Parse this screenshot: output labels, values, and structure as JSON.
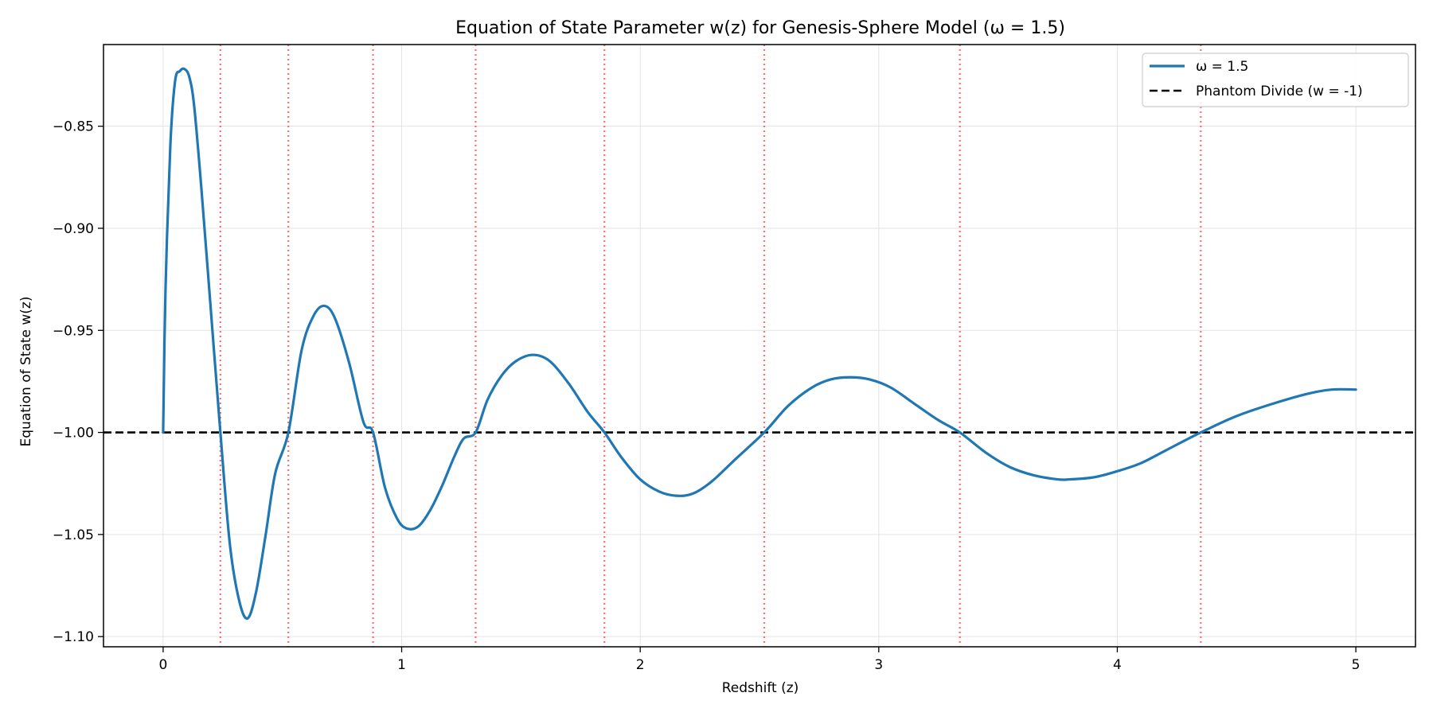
{
  "chart_data": {
    "type": "line",
    "title": "Equation of State Parameter w(z) for Genesis-Sphere Model (ω = 1.5)",
    "xlabel": "Redshift (z)",
    "ylabel": "Equation of State w(z)",
    "xlim": [
      -0.25,
      5.25
    ],
    "ylim": [
      -1.105,
      -0.81
    ],
    "xticks": [
      0,
      1,
      2,
      3,
      4,
      5
    ],
    "xtick_labels": [
      "0",
      "1",
      "2",
      "3",
      "4",
      "5"
    ],
    "yticks": [
      -1.1,
      -1.05,
      -1.0,
      -0.95,
      -0.9,
      -0.85
    ],
    "ytick_labels": [
      "−1.10",
      "−1.05",
      "−1.00",
      "−0.95",
      "−0.90",
      "−0.85"
    ],
    "grid": true,
    "legend_position": "top-right",
    "colors": {
      "series": "#1f77b4",
      "divide": "#000000",
      "crossings": "#ff5555"
    },
    "series": [
      {
        "name": "ω = 1.5",
        "x": [
          0,
          0.01,
          0.03,
          0.05,
          0.07,
          0.09,
          0.11,
          0.13,
          0.16,
          0.2,
          0.24,
          0.28,
          0.32,
          0.355,
          0.39,
          0.43,
          0.47,
          0.525,
          0.58,
          0.63,
          0.675,
          0.72,
          0.78,
          0.84,
          0.88,
          0.93,
          0.98,
          1.02,
          1.07,
          1.12,
          1.17,
          1.22,
          1.26,
          1.31,
          1.36,
          1.42,
          1.48,
          1.55,
          1.62,
          1.7,
          1.78,
          1.85,
          1.92,
          2.0,
          2.08,
          2.15,
          2.22,
          2.3,
          2.4,
          2.52,
          2.62,
          2.72,
          2.8,
          2.88,
          2.96,
          3.05,
          3.15,
          3.25,
          3.34,
          3.45,
          3.55,
          3.65,
          3.75,
          3.8,
          3.9,
          4.0,
          4.1,
          4.2,
          4.35,
          4.5,
          4.65,
          4.8,
          4.9,
          5.0
        ],
        "y": [
          -1.0,
          -0.93,
          -0.86,
          -0.828,
          -0.823,
          -0.822,
          -0.826,
          -0.84,
          -0.88,
          -0.94,
          -1.0,
          -1.055,
          -1.083,
          -1.091,
          -1.078,
          -1.05,
          -1.02,
          -1.0,
          -0.96,
          -0.943,
          -0.938,
          -0.944,
          -0.966,
          -0.995,
          -1.0,
          -1.027,
          -1.042,
          -1.047,
          -1.046,
          -1.038,
          -1.026,
          -1.012,
          -1.003,
          -1.0,
          -0.984,
          -0.972,
          -0.965,
          -0.962,
          -0.965,
          -0.976,
          -0.99,
          -1.0,
          -1.012,
          -1.023,
          -1.029,
          -1.031,
          -1.03,
          -1.024,
          -1.013,
          -1.0,
          -0.987,
          -0.978,
          -0.974,
          -0.973,
          -0.974,
          -0.978,
          -0.986,
          -0.994,
          -1.0,
          -1.01,
          -1.017,
          -1.021,
          -1.023,
          -1.023,
          -1.022,
          -1.019,
          -1.015,
          -1.009,
          -1.0,
          -0.992,
          -0.986,
          -0.981,
          -0.979,
          -0.979
        ]
      }
    ],
    "reference_line": {
      "name": "Phantom Divide (w = -1)",
      "y": -1.0
    },
    "crossing_lines_x": [
      0.24,
      0.525,
      0.88,
      1.31,
      1.85,
      2.52,
      3.34,
      4.35
    ]
  }
}
